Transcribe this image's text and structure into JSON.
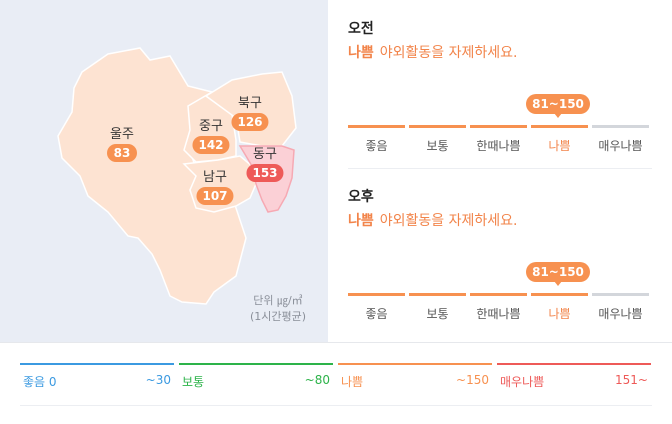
{
  "map": {
    "districts": [
      {
        "name": "울주",
        "value": "83",
        "level": "bad"
      },
      {
        "name": "중구",
        "value": "142",
        "level": "bad"
      },
      {
        "name": "북구",
        "value": "126",
        "level": "bad"
      },
      {
        "name": "동구",
        "value": "153",
        "level": "worst"
      },
      {
        "name": "남구",
        "value": "107",
        "level": "bad"
      }
    ],
    "unit_line1": "단위 ㎍/㎥",
    "unit_line2": "(1시간평균)",
    "colors": {
      "land": "#fde3d2",
      "border": "#ffffff",
      "east_land": "#fbd0d6",
      "east_border": "#f6a9b3",
      "sea": "#e9edf5"
    }
  },
  "forecast": {
    "am": {
      "title": "오전",
      "status": "나쁨",
      "message": "야외활동을 자제하세요.",
      "tip": "81~150",
      "levels": [
        "좋음",
        "보통",
        "한때나쁨",
        "나쁨",
        "매우나쁨"
      ],
      "active_index": 3
    },
    "pm": {
      "title": "오후",
      "status": "나쁨",
      "message": "야외활동을 자제하세요.",
      "tip": "81~150",
      "levels": [
        "좋음",
        "보통",
        "한때나쁨",
        "나쁨",
        "매우나쁨"
      ],
      "active_index": 3
    },
    "level_colors": [
      "#f79150",
      "#f79150",
      "#f79150",
      "#f79150",
      "#d3d6db"
    ]
  },
  "legend": [
    {
      "name": "좋음 0",
      "range": "~30",
      "color": "#3b9ae1"
    },
    {
      "name": "보통",
      "range": "~80",
      "color": "#2db34a"
    },
    {
      "name": "나쁨",
      "range": "~150",
      "color": "#f79150"
    },
    {
      "name": "매우나쁨",
      "range": "151~",
      "color": "#ee5a58"
    }
  ]
}
